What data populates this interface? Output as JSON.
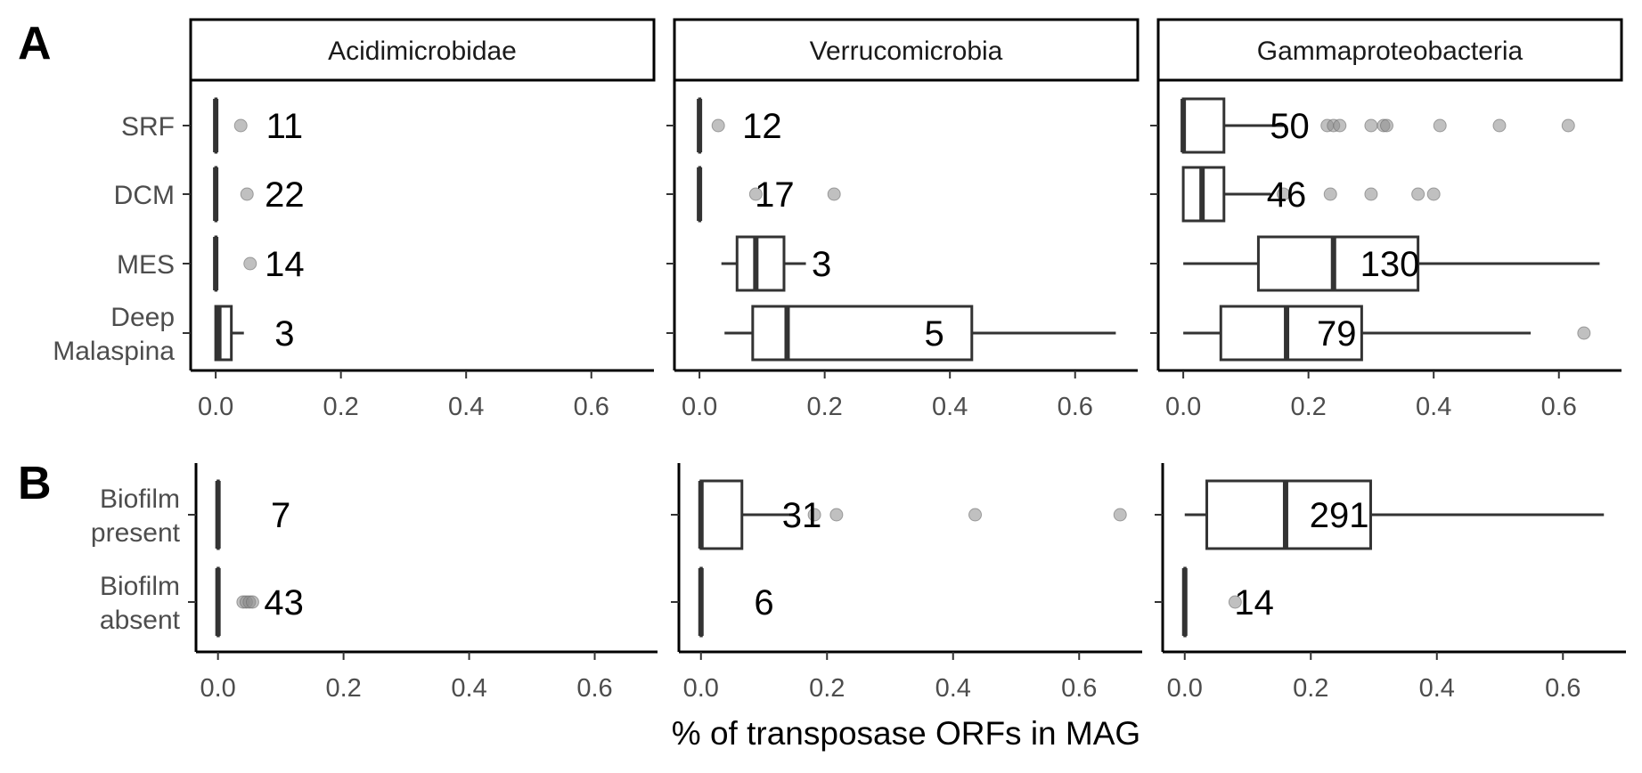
{
  "panel_letters": [
    "A",
    "B"
  ],
  "xlabel": "% of transposase ORFs in MAG",
  "colors": {
    "box_stroke": "#333333",
    "outlier": "#8c8c8c",
    "axis": "#000000"
  },
  "chart_data": [
    {
      "type": "boxplot",
      "panel": "A",
      "facets": [
        "Acidimicrobidae",
        "Verrucomicrobia",
        "Gammaproteobacteria"
      ],
      "categories": [
        "SRF",
        "DCM",
        "MES",
        "Deep\nMalaspina"
      ],
      "xticks": [
        0.0,
        0.2,
        0.4,
        0.6
      ],
      "xlim": [
        -0.04,
        0.7
      ],
      "orientation": "horizontal",
      "data": [
        [
          {
            "min": 0.0,
            "q1": 0.0,
            "median": 0.0,
            "q3": 0.0,
            "max": 0.0,
            "outliers": [
              0.04
            ],
            "n": "11",
            "label_x": 0.11
          },
          {
            "min": 0.0,
            "q1": 0.0,
            "median": 0.0,
            "q3": 0.0,
            "max": 0.0,
            "outliers": [
              0.05
            ],
            "n": "22",
            "label_x": 0.11
          },
          {
            "min": 0.0,
            "q1": 0.0,
            "median": 0.0,
            "q3": 0.0,
            "max": 0.0,
            "outliers": [
              0.055
            ],
            "n": "14",
            "label_x": 0.11
          },
          {
            "min": 0.0,
            "q1": 0.0,
            "median": 0.005,
            "q3": 0.025,
            "max": 0.045,
            "outliers": [],
            "n": "3",
            "label_x": 0.11
          }
        ],
        [
          {
            "min": 0.0,
            "q1": 0.0,
            "median": 0.0,
            "q3": 0.0,
            "max": 0.0,
            "outliers": [
              0.03
            ],
            "n": "12",
            "label_x": 0.1
          },
          {
            "min": 0.0,
            "q1": 0.0,
            "median": 0.0,
            "q3": 0.0,
            "max": 0.0,
            "outliers": [
              0.09,
              0.215
            ],
            "n": "17",
            "label_x": 0.12
          },
          {
            "min": 0.035,
            "q1": 0.06,
            "median": 0.09,
            "q3": 0.135,
            "max": 0.17,
            "outliers": [],
            "n": "3",
            "label_x": 0.195
          },
          {
            "min": 0.04,
            "q1": 0.085,
            "median": 0.14,
            "q3": 0.435,
            "max": 0.665,
            "outliers": [],
            "n": "5",
            "label_x": 0.375
          }
        ],
        [
          {
            "min": 0.0,
            "q1": 0.0,
            "median": 0.0,
            "q3": 0.065,
            "max": 0.16,
            "outliers": [
              0.23,
              0.24,
              0.25,
              0.3,
              0.32,
              0.325,
              0.41,
              0.505,
              0.615
            ],
            "n": "50",
            "label_x": 0.17
          },
          {
            "min": 0.0,
            "q1": 0.0,
            "median": 0.03,
            "q3": 0.065,
            "max": 0.14,
            "outliers": [
              0.16,
              0.235,
              0.3,
              0.375,
              0.4
            ],
            "n": "46",
            "label_x": 0.165
          },
          {
            "min": 0.0,
            "q1": 0.12,
            "median": 0.24,
            "q3": 0.375,
            "max": 0.665,
            "outliers": [],
            "n": "130",
            "label_x": 0.33
          },
          {
            "min": 0.0,
            "q1": 0.06,
            "median": 0.165,
            "q3": 0.285,
            "max": 0.555,
            "outliers": [
              0.64
            ],
            "n": "79",
            "label_x": 0.245
          }
        ]
      ]
    },
    {
      "type": "boxplot",
      "panel": "B",
      "facets": [
        "Acidimicrobidae",
        "Verrucomicrobia",
        "Gammaproteobacteria"
      ],
      "categories": [
        "Biofilm\npresent",
        "Biofilm\nabsent"
      ],
      "xticks": [
        0.0,
        0.2,
        0.4,
        0.6
      ],
      "xlim": [
        -0.035,
        0.7
      ],
      "orientation": "horizontal",
      "data": [
        [
          {
            "min": 0.0,
            "q1": 0.0,
            "median": 0.0,
            "q3": 0.0,
            "max": 0.0,
            "outliers": [],
            "n": "7",
            "label_x": 0.1
          },
          {
            "min": 0.0,
            "q1": 0.0,
            "median": 0.0,
            "q3": 0.0,
            "max": 0.0,
            "outliers": [
              0.04,
              0.045,
              0.05,
              0.055
            ],
            "n": "43",
            "label_x": 0.105
          }
        ],
        [
          {
            "min": 0.0,
            "q1": 0.0,
            "median": 0.0,
            "q3": 0.065,
            "max": 0.15,
            "outliers": [
              0.18,
              0.215,
              0.435,
              0.665
            ],
            "n": "31",
            "label_x": 0.16
          },
          {
            "min": 0.0,
            "q1": 0.0,
            "median": 0.0,
            "q3": 0.0,
            "max": 0.0,
            "outliers": [],
            "n": "6",
            "label_x": 0.1
          }
        ],
        [
          {
            "min": 0.0,
            "q1": 0.035,
            "median": 0.16,
            "q3": 0.295,
            "max": 0.665,
            "outliers": [],
            "n": "291",
            "label_x": 0.245
          },
          {
            "min": 0.0,
            "q1": 0.0,
            "median": 0.0,
            "q3": 0.0,
            "max": 0.0,
            "outliers": [
              0.08
            ],
            "n": "14",
            "label_x": 0.11
          }
        ]
      ]
    }
  ]
}
